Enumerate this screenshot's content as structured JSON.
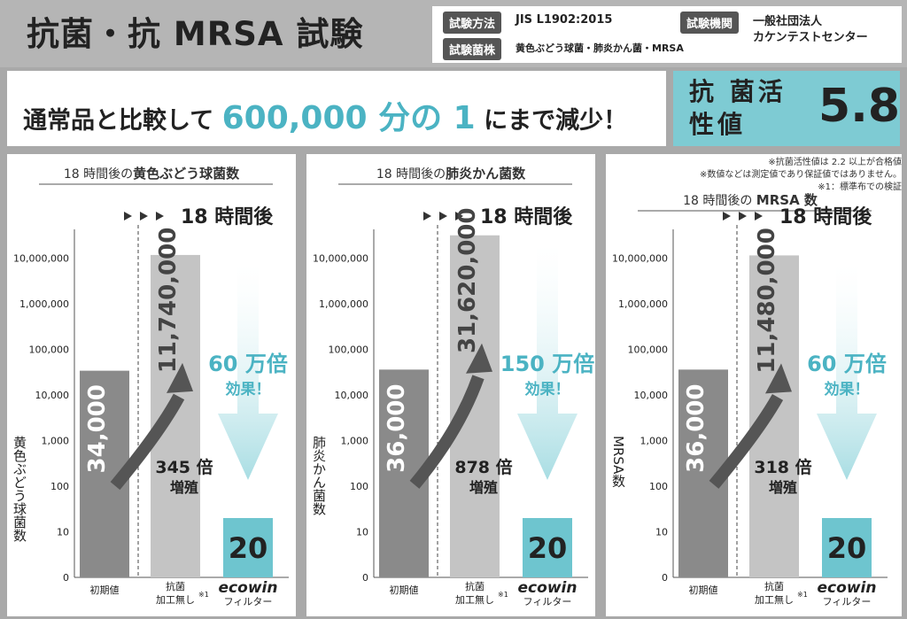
{
  "header": {
    "title": "抗菌・抗 MRSA 試験",
    "method_label": "試験方法",
    "method_value": "JIS L1902:2015",
    "org_label": "試験機関",
    "org_value_1": "一般社団法人",
    "org_value_2": "カケンテストセンター",
    "strain_label": "試験菌株",
    "strain_value": "黄色ぶどう球菌・肺炎かん菌・MRSA"
  },
  "banner": {
    "text_before": "通常品と比較して ",
    "highlight": "600,000 分の 1",
    "text_after": " にまで減少！"
  },
  "activity": {
    "label": "抗 菌活性値",
    "value": "5.8"
  },
  "notes": {
    "line1": "※抗菌活性値は 2.2 以上が合格値",
    "line2": "※数値などは測定値であり保証値ではありません。",
    "line3": "※1：標準布での検証"
  },
  "colors": {
    "initial_bar": "#8a8a8a",
    "untreated_bar": "#c4c4c4",
    "ecowin_bar": "#6ec5cf",
    "accent": "#4bb3c3"
  },
  "shared": {
    "after_label": "18 時間後",
    "category_1": "初期値",
    "category_2a": "抗菌",
    "category_2b": "加工無し",
    "category_2_note": "※1",
    "category_3a": "ecowin",
    "category_3b": "フィルター",
    "growth_label": "増殖",
    "effect_label": "効果！",
    "y_ticks": [
      "0",
      "10",
      "100",
      "1,000",
      "10,000",
      "100,000",
      "1,000,000",
      "10,000,000"
    ]
  },
  "chart_data": [
    {
      "type": "bar",
      "title": "18 時間後の黄色ぶどう球菌数",
      "title_pre": "18 時間後の",
      "title_bold": "黄色ぶどう球菌数",
      "ylabel": "黄色ぶどう球菌数",
      "y_scale": "log",
      "categories": [
        "初期値",
        "抗菌 加工無し",
        "ecowin フィルター"
      ],
      "values": [
        34000,
        11740000,
        20
      ],
      "value_labels": [
        "34,000",
        "11,740,000",
        "20"
      ],
      "growth": "345 倍",
      "effect": "60 万倍"
    },
    {
      "type": "bar",
      "title": "18 時間後の肺炎かん菌数",
      "title_pre": "18 時間後の",
      "title_bold": "肺炎かん菌数",
      "ylabel": "肺炎かん菌数",
      "y_scale": "log",
      "categories": [
        "初期値",
        "抗菌 加工無し",
        "ecowin フィルター"
      ],
      "values": [
        36000,
        31620000,
        20
      ],
      "value_labels": [
        "36,000",
        "31,620,000",
        "20"
      ],
      "growth": "878 倍",
      "effect": "150 万倍"
    },
    {
      "type": "bar",
      "title": "18 時間後の MRSA 数",
      "title_pre": "18 時間後の ",
      "title_bold": "MRSA 数",
      "ylabel": "MRSA数",
      "y_scale": "log",
      "categories": [
        "初期値",
        "抗菌 加工無し",
        "ecowin フィルター"
      ],
      "values": [
        36000,
        11480000,
        20
      ],
      "value_labels": [
        "36,000",
        "11,480,000",
        "20"
      ],
      "growth": "318 倍",
      "effect": "60 万倍"
    }
  ]
}
